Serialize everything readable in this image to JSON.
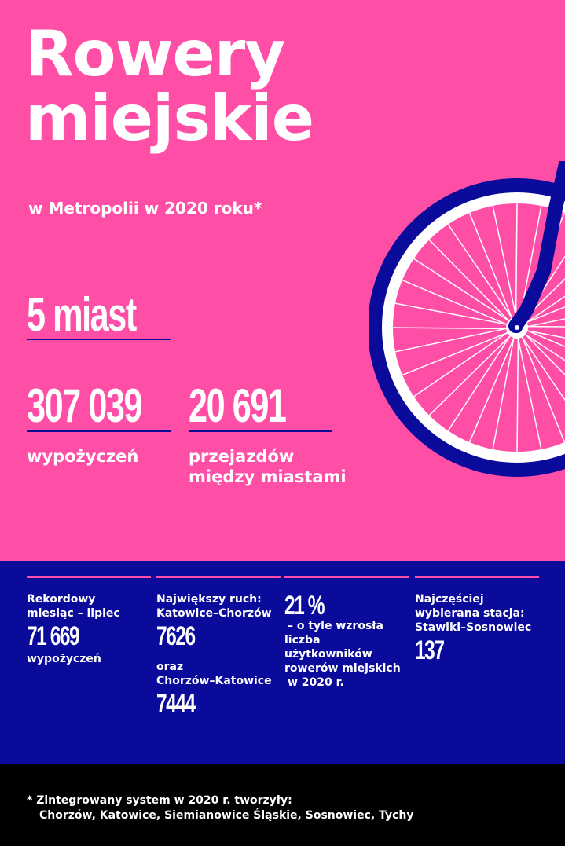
{
  "header": {
    "title_line1": "Rowery",
    "title_line2": "miejskie",
    "subtitle": "w Metropolii w 2020 roku*"
  },
  "stats": {
    "cities": "5 miast",
    "rentals_value": "307 039",
    "rentals_label": "wypożyczeń",
    "intercity_value": "20 691",
    "intercity_label_line1": "przejazdów",
    "intercity_label_line2": "między miastami"
  },
  "details": {
    "record": {
      "line1": "Rekordowy",
      "line2": "miesiąc – lipiec",
      "value": "71 669",
      "label": "wypożyczeń"
    },
    "traffic": {
      "line1": "Największy ruch:",
      "line2": "Katowice–Chorzów",
      "value1": "7626",
      "line3": "oraz",
      "line4": "Chorzów–Katowice",
      "value2": "7444"
    },
    "growth": {
      "value": "21 %",
      "line1": "– o tyle wzrosła",
      "line2": "liczba użytkowników",
      "line3": "rowerów miejskich",
      "line4": "w 2020 r."
    },
    "station": {
      "line1": "Najczęściej",
      "line2": "wybierana stacja:",
      "line3": "Stawiki–Sosnowiec",
      "value": "137"
    }
  },
  "footnote": {
    "line1": "*  Zintegrowany system w 2020 r. tworzyły:",
    "line2": "Chorzów, Katowice, Siemianowice Śląskie, Sosnowiec, Tychy"
  },
  "colors": {
    "pink": "#ff4ea6",
    "navy": "#0a0a9b",
    "black": "#000000",
    "white": "#ffffff"
  },
  "icons": {
    "illustration": "bicycle-wheel-icon"
  }
}
